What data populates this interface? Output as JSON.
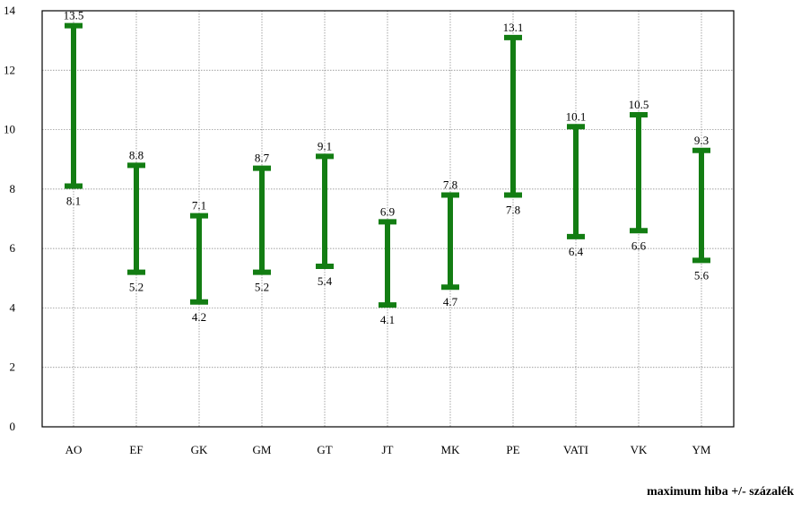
{
  "chart_data": {
    "type": "range",
    "categories": [
      "AO",
      "EF",
      "GK",
      "GM",
      "GT",
      "JT",
      "MK",
      "PE",
      "VATI",
      "VK",
      "YM"
    ],
    "series": [
      {
        "low": [
          8.1,
          5.2,
          4.2,
          5.2,
          5.4,
          4.1,
          4.7,
          7.8,
          6.4,
          6.6,
          5.6
        ],
        "high": [
          13.5,
          8.8,
          7.1,
          8.7,
          9.1,
          6.9,
          7.8,
          13.1,
          10.1,
          10.5,
          9.3
        ]
      }
    ],
    "low_labels": [
      "8.1",
      "5.2",
      "4.2",
      "5.2",
      "5.4",
      "4.1",
      "4.7",
      "7.8",
      "6.4",
      "6.6",
      "5.6"
    ],
    "high_labels": [
      "13.5",
      "8.8",
      "7.1",
      "8.7",
      "9.1",
      "6.9",
      "7.8",
      "13.1",
      "10.1",
      "10.5",
      "9.3"
    ],
    "ylim": [
      0,
      14
    ],
    "yticks": [
      0,
      2,
      4,
      6,
      8,
      10,
      12,
      14
    ],
    "grid": true,
    "colors": {
      "bar": "#137d13",
      "grid": "#808080",
      "axis": "#000000",
      "text": "#000000"
    },
    "caption": "maximum hiba +/- százalék"
  }
}
